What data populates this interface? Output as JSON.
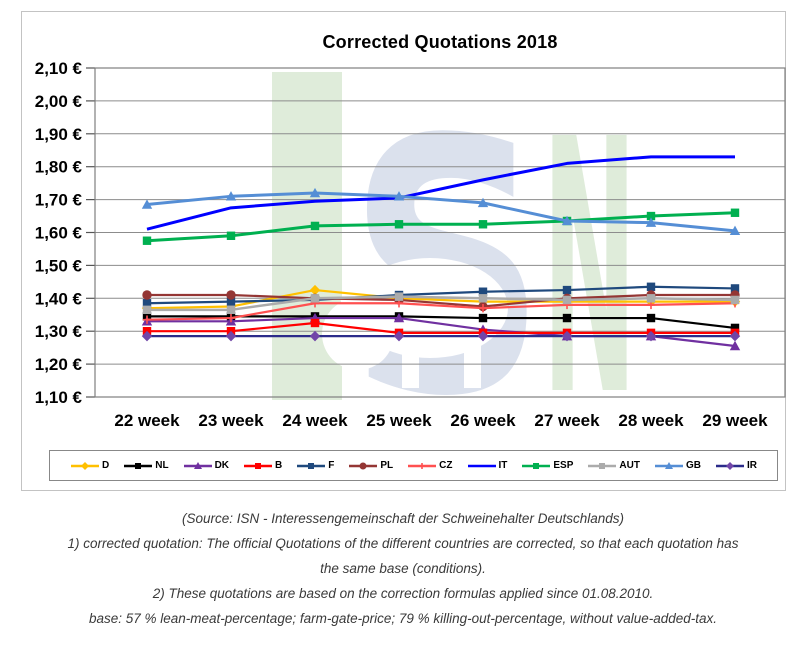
{
  "chart_data": {
    "type": "line",
    "title": "Corrected Quotations 2018",
    "categories": [
      "22 week",
      "23 week",
      "24 week",
      "25 week",
      "26 week",
      "27 week",
      "28 week",
      "29 week"
    ],
    "ylim": [
      1.1,
      2.1
    ],
    "yticks": [
      {
        "value": 2.1,
        "label": "2,10 €"
      },
      {
        "value": 2.0,
        "label": "2,00 €"
      },
      {
        "value": 1.9,
        "label": "1,90 €"
      },
      {
        "value": 1.8,
        "label": "1,80 €"
      },
      {
        "value": 1.7,
        "label": "1,70 €"
      },
      {
        "value": 1.6,
        "label": "1,60 €"
      },
      {
        "value": 1.5,
        "label": "1,50 €"
      },
      {
        "value": 1.4,
        "label": "1,40 €"
      },
      {
        "value": 1.3,
        "label": "1,30 €"
      },
      {
        "value": 1.2,
        "label": "1,20 €"
      },
      {
        "value": 1.1,
        "label": "1,10 €"
      }
    ],
    "grid": "horizontal",
    "legend_position": "bottom",
    "currency": "EUR",
    "watermark": {
      "text": "ISN",
      "green": "#dcead6",
      "blue": "#d8deec"
    },
    "series": [
      {
        "label": "D",
        "color": "#FFC000",
        "marker": "diamond",
        "values": [
          1.37,
          1.375,
          1.425,
          1.4,
          1.39,
          1.39,
          1.39,
          1.39
        ]
      },
      {
        "label": "NL",
        "color": "#000000",
        "marker": "square",
        "values": [
          1.345,
          1.345,
          1.345,
          1.345,
          1.34,
          1.34,
          1.34,
          1.31
        ]
      },
      {
        "label": "DK",
        "color": "#7030A0",
        "marker": "triangle",
        "values": [
          1.33,
          1.33,
          1.34,
          1.34,
          1.305,
          1.285,
          1.285,
          1.255
        ]
      },
      {
        "label": "B",
        "color": "#FF0000",
        "marker": "square",
        "values": [
          1.3,
          1.3,
          1.325,
          1.295,
          1.295,
          1.295,
          1.295,
          1.295
        ]
      },
      {
        "label": "F",
        "color": "#1F497D",
        "marker": "square",
        "values": [
          1.385,
          1.39,
          1.395,
          1.41,
          1.42,
          1.425,
          1.435,
          1.43
        ]
      },
      {
        "label": "PL",
        "color": "#943634",
        "marker": "circle",
        "values": [
          1.41,
          1.41,
          1.4,
          1.395,
          1.375,
          1.4,
          1.41,
          1.41
        ]
      },
      {
        "label": "CZ",
        "color": "#FF5050",
        "marker": "plus",
        "values": [
          1.335,
          1.34,
          1.385,
          1.385,
          1.37,
          1.38,
          1.38,
          1.385
        ]
      },
      {
        "label": "IT",
        "color": "#0000FF",
        "marker": "none",
        "width": 3,
        "values": [
          1.61,
          1.675,
          1.695,
          1.705,
          1.76,
          1.81,
          1.83,
          1.83
        ]
      },
      {
        "label": "ESP",
        "color": "#00B050",
        "marker": "square",
        "width": 3,
        "values": [
          1.575,
          1.59,
          1.62,
          1.625,
          1.625,
          1.635,
          1.65,
          1.66
        ]
      },
      {
        "label": "AUT",
        "color": "#ABABAB",
        "marker": "square",
        "width": 2.5,
        "values": [
          1.365,
          1.365,
          1.4,
          1.405,
          1.4,
          1.395,
          1.4,
          1.395
        ]
      },
      {
        "label": "GB",
        "color": "#558ED5",
        "marker": "triangle",
        "width": 3,
        "values": [
          1.685,
          1.71,
          1.72,
          1.71,
          1.69,
          1.635,
          1.63,
          1.605
        ]
      },
      {
        "label": "IR",
        "color": "#2B2B8A",
        "marker": "diamond",
        "marker_color": "#7146A8",
        "values": [
          1.285,
          1.285,
          1.285,
          1.285,
          1.285,
          1.285,
          1.285,
          1.285
        ]
      }
    ]
  },
  "footer": {
    "lines": [
      "(Source: ISN - Interessengemeinschaft der Schweinehalter Deutschlands)",
      "1) corrected quotation: The official Quotations of the different countries are corrected, so that each quotation has",
      "the same base (conditions).",
      "2) These quotations are based on the correction formulas applied since 01.08.2010.",
      "base: 57 % lean-meat-percentage; farm-gate-price; 79 % killing-out-percentage, without value-added-tax."
    ]
  }
}
